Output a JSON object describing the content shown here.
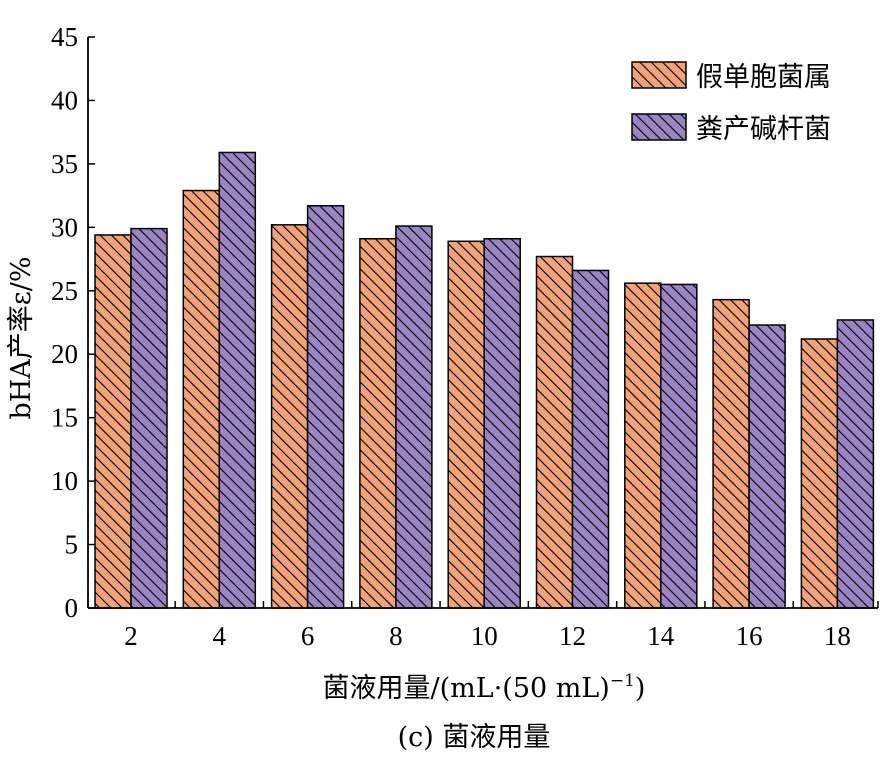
{
  "chart_data": {
    "type": "bar",
    "categories": [
      "2",
      "4",
      "6",
      "8",
      "10",
      "12",
      "14",
      "16",
      "18"
    ],
    "series": [
      {
        "name": "假单胞菌属",
        "values": [
          29.4,
          32.9,
          30.2,
          29.1,
          28.9,
          27.7,
          25.6,
          24.3,
          21.2
        ],
        "color": "#F2A277"
      },
      {
        "name": "粪产碱杆菌",
        "values": [
          29.9,
          35.9,
          31.7,
          30.1,
          29.1,
          26.6,
          25.5,
          22.3,
          22.7
        ],
        "color": "#9B84C4"
      }
    ],
    "xlabel": "菌液用量/(mL·(50 mL)",
    "xlabel_sup": "−1",
    "xlabel_suffix": ")",
    "ylabel": "bHA产率ε/%",
    "ylim": [
      0,
      45
    ],
    "yticks": [
      0,
      5,
      10,
      15,
      20,
      25,
      30,
      35,
      40,
      45
    ],
    "caption": "(c) 菌液用量",
    "legend_position": "top-right",
    "hatch": "diagonal"
  }
}
